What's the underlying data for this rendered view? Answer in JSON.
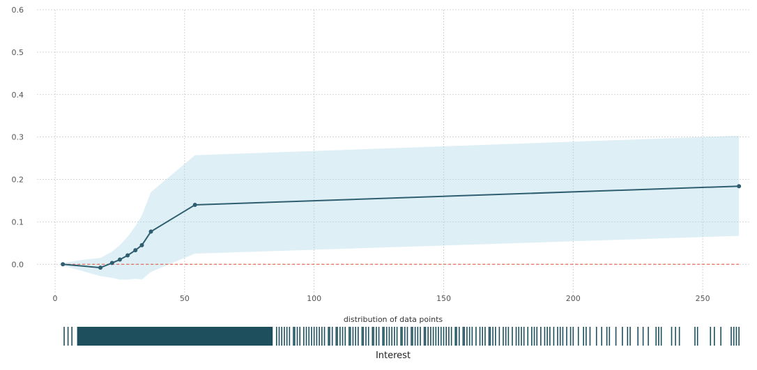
{
  "chart_data": {
    "type": "line",
    "title": "",
    "xlabel": "Interest",
    "ylabel": "",
    "xlim": [
      -7,
      268
    ],
    "ylim": [
      -0.085,
      0.6
    ],
    "grid": true,
    "xticks": [
      0,
      50,
      100,
      150,
      200,
      250
    ],
    "yticks": [
      0.0,
      0.1,
      0.2,
      0.3,
      0.4,
      0.5,
      0.6
    ],
    "x": [
      3,
      17.5,
      22,
      25,
      28,
      31,
      33.5,
      37,
      54,
      264
    ],
    "series": [
      {
        "values": [
          0.0,
          -0.008,
          0.003,
          0.011,
          0.021,
          0.033,
          0.045,
          0.077,
          0.14,
          0.184
        ],
        "color": "#2e5e70"
      }
    ],
    "confidence_band": {
      "x": [
        3,
        10,
        17.5,
        22,
        25,
        28,
        31,
        33.5,
        37,
        54,
        264
      ],
      "upper": [
        0.003,
        0.01,
        0.015,
        0.03,
        0.045,
        0.065,
        0.09,
        0.115,
        0.17,
        0.257,
        0.303
      ],
      "lower": [
        -0.003,
        -0.015,
        -0.028,
        -0.032,
        -0.036,
        -0.036,
        -0.034,
        -0.036,
        -0.018,
        0.025,
        0.067
      ],
      "color": "#add8e6"
    },
    "reference_line": {
      "y": 0.0,
      "color": "#e34a33",
      "style": "dashed"
    },
    "distribution": {
      "title": "distribution of data points",
      "color": "#1d4f5c",
      "dense_range": [
        8.5,
        84
      ],
      "points": [
        3.5,
        5,
        6.5,
        85.5,
        86.5,
        87.5,
        88.5,
        89.5,
        90.5,
        92,
        92.5,
        93.5,
        94.5,
        96,
        97,
        98,
        99,
        100,
        101,
        102,
        103,
        104,
        105.5,
        106,
        107,
        108.5,
        109,
        110,
        111,
        112,
        113.5,
        114,
        115,
        116,
        117,
        118.5,
        119,
        120,
        121,
        122.5,
        123,
        124,
        125,
        126.5,
        127,
        128,
        129,
        130,
        131,
        132,
        133.5,
        134,
        135,
        136,
        137.5,
        138,
        139,
        140,
        141,
        142.5,
        143,
        144,
        145,
        146,
        147,
        148,
        149,
        150,
        151,
        152,
        153,
        154.5,
        155,
        156,
        157.5,
        158,
        159,
        160,
        161,
        162.5,
        164,
        165,
        166,
        167.5,
        168,
        169,
        170,
        171.5,
        173,
        174,
        175,
        176.5,
        178,
        179,
        180,
        181,
        182.5,
        184,
        185,
        186,
        187.5,
        189,
        190,
        191,
        192.5,
        194,
        195,
        196,
        197.5,
        199,
        200,
        202,
        204,
        205,
        206.5,
        209,
        211,
        213,
        214,
        216.5,
        219,
        221,
        222,
        225,
        227,
        229,
        232,
        233,
        234,
        238,
        239.5,
        241,
        247,
        248,
        253,
        254.5,
        257,
        261,
        262,
        263,
        264
      ]
    }
  }
}
